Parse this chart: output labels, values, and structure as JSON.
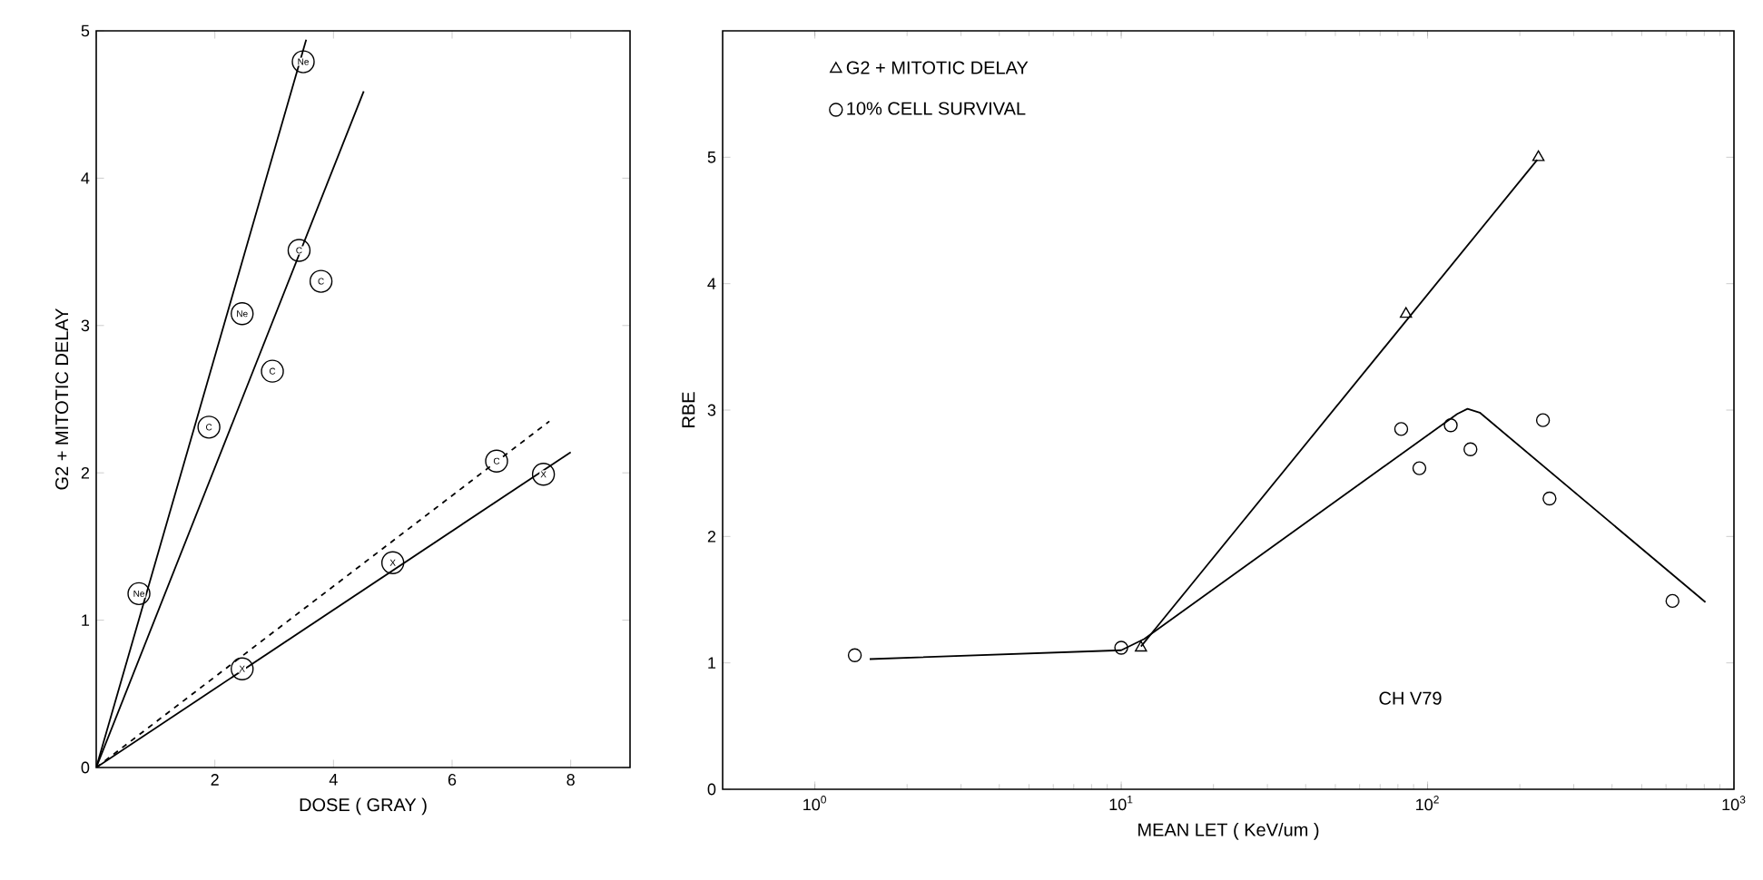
{
  "chart_data": [
    {
      "type": "scatter",
      "xlabel": "DOSE ( GRAY )",
      "ylabel": "G2 + MITOTIC DELAY",
      "xlim": [
        0,
        9
      ],
      "ylim": [
        0,
        5
      ],
      "xticks": [
        {
          "value": 0,
          "label": null
        },
        2,
        4,
        6,
        8
      ],
      "yticks": [
        0,
        1,
        2,
        3,
        4,
        5
      ],
      "series": [
        {
          "name": "Ne",
          "marker": "circle",
          "color": "#000000",
          "x": [
            0.72,
            2.46,
            3.49
          ],
          "values": [
            1.18,
            3.08,
            4.79
          ]
        },
        {
          "name": "C",
          "marker": "circle",
          "color": "#000000",
          "x": [
            1.9,
            2.97,
            3.42,
            3.79,
            6.75
          ],
          "values": [
            2.31,
            2.69,
            3.51,
            3.3,
            2.08
          ]
        },
        {
          "name": "X",
          "marker": "circle",
          "color": "#000000",
          "x": [
            2.46,
            5.0,
            7.54
          ],
          "values": [
            0.67,
            1.39,
            1.99
          ]
        },
        {
          "type": "line",
          "line_style": "solid",
          "color": "#000000",
          "x": [
            0,
            3.54
          ],
          "values": [
            0,
            4.94
          ]
        },
        {
          "type": "line",
          "line_style": "solid",
          "color": "#000000",
          "x": [
            0,
            4.51
          ],
          "values": [
            0,
            4.59
          ]
        },
        {
          "type": "line",
          "line_style": "dashed",
          "color": "#000000",
          "x": [
            0,
            7.64
          ],
          "values": [
            0,
            2.35
          ]
        },
        {
          "type": "line",
          "line_style": "solid",
          "color": "#000000",
          "x": [
            0,
            8.0
          ],
          "values": [
            0,
            2.14
          ]
        }
      ]
    },
    {
      "type": "scatter",
      "xlabel": "MEAN LET ( KeV/um )",
      "ylabel": "RBE",
      "log": "x",
      "xlim": [
        0.5,
        1000
      ],
      "ylim": [
        0,
        6
      ],
      "xticks": [
        {
          "value": 1,
          "label": "10$^{0}$"
        },
        {
          "value": 10,
          "label": "10$^{1}$"
        },
        {
          "value": 100,
          "label": "10$^{2}$"
        },
        {
          "value": 1000,
          "label": "10$^{3}$"
        }
      ],
      "yticks": [
        0,
        1,
        2,
        3,
        4,
        5
      ],
      "legend": "top left",
      "annotations": [
        "CH V79"
      ],
      "series": [
        {
          "name": "G2 + MITOTIC DELAY",
          "marker": "triangle",
          "color": "#000000",
          "x": [
            11.6,
            85,
            230
          ],
          "values": [
            1.12,
            3.76,
            5.0
          ]
        },
        {
          "name": "10% CELL SURVIVAL",
          "marker": "circle",
          "color": "#000000",
          "x": [
            1.35,
            10,
            82,
            94,
            119,
            138,
            238,
            250,
            630
          ],
          "values": [
            1.06,
            1.12,
            2.85,
            2.54,
            2.88,
            2.69,
            2.92,
            2.3,
            1.49
          ]
        },
        {
          "type": "line",
          "line_style": "solid",
          "color": "#000000",
          "x": [
            11.6,
            228
          ],
          "values": [
            1.13,
            4.98
          ]
        },
        {
          "type": "line",
          "line_style": "solid",
          "color": "#000000",
          "x": [
            1.51,
            10,
            11.9,
            125,
            135,
            148,
            807
          ],
          "values": [
            1.03,
            1.1,
            1.19,
            2.97,
            3.01,
            2.98,
            1.48
          ]
        }
      ]
    }
  ]
}
